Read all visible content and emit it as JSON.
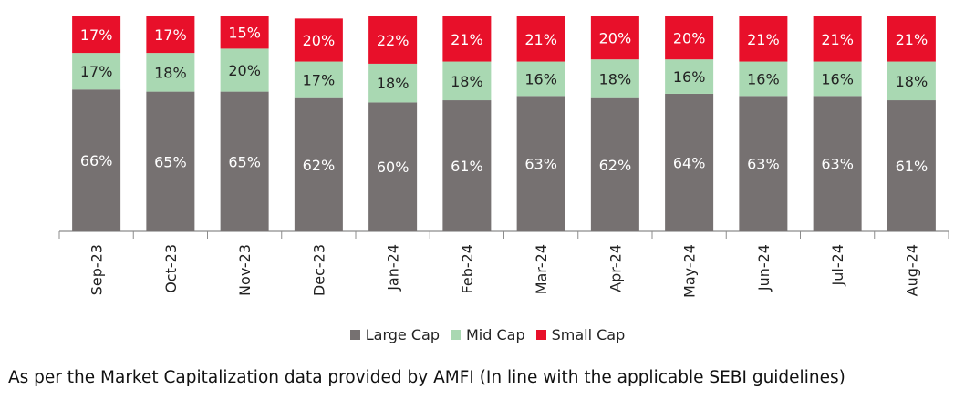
{
  "chart_data": {
    "type": "bar",
    "stacked": true,
    "normalized_percent": true,
    "categories": [
      "Sep-23",
      "Oct-23",
      "Nov-23",
      "Dec-23",
      "Jan-24",
      "Feb-24",
      "Mar-24",
      "Apr-24",
      "May-24",
      "Jun-24",
      "Jul-24",
      "Aug-24"
    ],
    "series": [
      {
        "name": "Large Cap",
        "color": "#767171",
        "values": [
          66,
          65,
          65,
          62,
          60,
          61,
          63,
          62,
          64,
          63,
          63,
          61
        ],
        "labels": [
          "66%",
          "65%",
          "65%",
          "62%",
          "60%",
          "61%",
          "63%",
          "62%",
          "64%",
          "63%",
          "63%",
          "61%"
        ]
      },
      {
        "name": "Mid Cap",
        "color": "#a9d8b2",
        "values": [
          17,
          18,
          20,
          17,
          18,
          18,
          16,
          18,
          16,
          16,
          16,
          18
        ],
        "labels": [
          "17%",
          "18%",
          "20%",
          "17%",
          "18%",
          "18%",
          "16%",
          "18%",
          "16%",
          "16%",
          "16%",
          "18%"
        ]
      },
      {
        "name": "Small Cap",
        "color": "#e8102a",
        "values": [
          17,
          17,
          15,
          20,
          22,
          21,
          21,
          20,
          20,
          21,
          21,
          21
        ],
        "labels": [
          "17%",
          "17%",
          "15%",
          "20%",
          "22%",
          "21%",
          "21%",
          "20%",
          "20%",
          "21%",
          "21%",
          "21%"
        ]
      }
    ],
    "legend_position": "bottom",
    "grid": false,
    "xlabel": "",
    "ylabel": ""
  },
  "footnote": "As per the Market Capitalization data provided by AMFI (In line with the applicable SEBI guidelines)"
}
